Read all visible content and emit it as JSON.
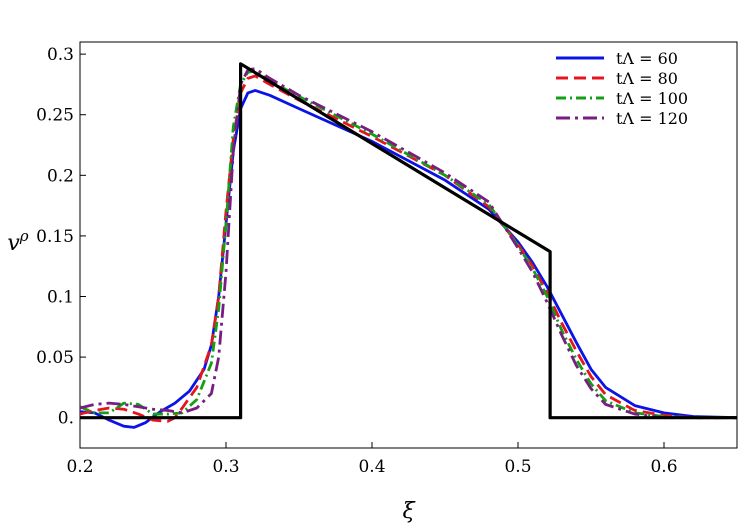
{
  "chart_data": {
    "type": "line",
    "title": "",
    "xlabel": "ξ",
    "ylabel": "v^ρ",
    "xlim": [
      0.2,
      0.65
    ],
    "ylim": [
      -0.025,
      0.31
    ],
    "grid": false,
    "legend_position": "top-right",
    "x_ticks": [
      {
        "value": 0.2,
        "label": "0.2"
      },
      {
        "value": 0.3,
        "label": "0.3"
      },
      {
        "value": 0.4,
        "label": "0.4"
      },
      {
        "value": 0.5,
        "label": "0.5"
      },
      {
        "value": 0.6,
        "label": "0.6"
      }
    ],
    "y_ticks": [
      {
        "value": 0.0,
        "label": "0."
      },
      {
        "value": 0.05,
        "label": "0.05"
      },
      {
        "value": 0.1,
        "label": "0.1"
      },
      {
        "value": 0.15,
        "label": "0.15"
      },
      {
        "value": 0.2,
        "label": "0.2"
      },
      {
        "value": 0.25,
        "label": "0.25"
      },
      {
        "value": 0.3,
        "label": "0.3"
      }
    ],
    "series": [
      {
        "name": "tΛ = 60",
        "color": "#0a14e6",
        "dash": "solid",
        "legend": true,
        "x": [
          0.2,
          0.21,
          0.22,
          0.23,
          0.237,
          0.245,
          0.255,
          0.265,
          0.275,
          0.285,
          0.29,
          0.295,
          0.3,
          0.305,
          0.31,
          0.315,
          0.32,
          0.33,
          0.35,
          0.4,
          0.45,
          0.48,
          0.5,
          0.51,
          0.52,
          0.53,
          0.54,
          0.55,
          0.56,
          0.58,
          0.6,
          0.62,
          0.65
        ],
        "y": [
          0.005,
          0.004,
          -0.002,
          -0.007,
          -0.008,
          -0.004,
          0.005,
          0.012,
          0.022,
          0.04,
          0.06,
          0.1,
          0.16,
          0.22,
          0.255,
          0.268,
          0.27,
          0.266,
          0.255,
          0.228,
          0.196,
          0.172,
          0.145,
          0.128,
          0.108,
          0.085,
          0.062,
          0.04,
          0.025,
          0.01,
          0.004,
          0.001,
          0.0
        ]
      },
      {
        "name": "tΛ = 80",
        "color": "#e6141e",
        "dash": "12,6",
        "legend": true,
        "x": [
          0.2,
          0.21,
          0.22,
          0.23,
          0.24,
          0.25,
          0.26,
          0.265,
          0.27,
          0.28,
          0.29,
          0.295,
          0.3,
          0.305,
          0.31,
          0.315,
          0.32,
          0.33,
          0.35,
          0.4,
          0.45,
          0.48,
          0.5,
          0.51,
          0.52,
          0.53,
          0.54,
          0.55,
          0.56,
          0.58,
          0.6,
          0.62,
          0.65
        ],
        "y": [
          0.003,
          0.006,
          0.008,
          0.007,
          0.003,
          -0.002,
          -0.003,
          0.0,
          0.008,
          0.025,
          0.06,
          0.1,
          0.17,
          0.23,
          0.268,
          0.28,
          0.282,
          0.275,
          0.262,
          0.232,
          0.2,
          0.174,
          0.143,
          0.125,
          0.103,
          0.078,
          0.055,
          0.034,
          0.019,
          0.006,
          0.002,
          0.0,
          0.0
        ]
      },
      {
        "name": "tΛ = 100",
        "color": "#14a014",
        "dash": "10,4,2,4",
        "legend": true,
        "x": [
          0.2,
          0.21,
          0.22,
          0.23,
          0.24,
          0.25,
          0.26,
          0.27,
          0.28,
          0.29,
          0.295,
          0.3,
          0.305,
          0.31,
          0.315,
          0.32,
          0.33,
          0.35,
          0.4,
          0.45,
          0.48,
          0.5,
          0.51,
          0.52,
          0.53,
          0.54,
          0.55,
          0.56,
          0.58,
          0.6,
          0.62,
          0.65
        ],
        "y": [
          0.009,
          0.004,
          0.004,
          0.012,
          0.011,
          0.003,
          0.003,
          0.004,
          0.015,
          0.045,
          0.09,
          0.16,
          0.24,
          0.275,
          0.285,
          0.286,
          0.278,
          0.265,
          0.234,
          0.2,
          0.176,
          0.142,
          0.123,
          0.1,
          0.072,
          0.048,
          0.028,
          0.014,
          0.004,
          0.001,
          0.0,
          0.0
        ]
      },
      {
        "name": "tΛ = 120",
        "color": "#781e82",
        "dash": "14,5,3,5",
        "legend": true,
        "x": [
          0.2,
          0.21,
          0.22,
          0.23,
          0.24,
          0.25,
          0.26,
          0.27,
          0.28,
          0.29,
          0.295,
          0.3,
          0.305,
          0.31,
          0.315,
          0.32,
          0.33,
          0.35,
          0.4,
          0.45,
          0.48,
          0.5,
          0.51,
          0.52,
          0.53,
          0.54,
          0.55,
          0.56,
          0.58,
          0.6,
          0.62,
          0.65
        ],
        "y": [
          0.008,
          0.011,
          0.012,
          0.011,
          0.009,
          0.007,
          0.006,
          0.004,
          0.008,
          0.02,
          0.05,
          0.12,
          0.22,
          0.275,
          0.287,
          0.288,
          0.28,
          0.266,
          0.236,
          0.202,
          0.178,
          0.14,
          0.12,
          0.095,
          0.068,
          0.043,
          0.024,
          0.011,
          0.003,
          0.0,
          0.0,
          0.0
        ]
      },
      {
        "name": "",
        "color": "#000000",
        "dash": "solid",
        "legend": false,
        "x": [
          0.2,
          0.31,
          0.31,
          0.522,
          0.522,
          0.65
        ],
        "y": [
          0.0,
          0.0,
          0.292,
          0.137,
          0.0,
          0.0
        ]
      }
    ]
  }
}
